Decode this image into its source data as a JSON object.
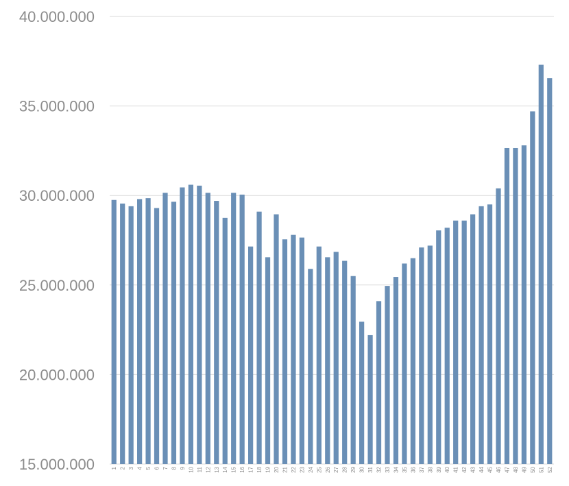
{
  "chart_data": {
    "type": "bar",
    "title": "",
    "xlabel": "",
    "ylabel": "",
    "ylim": [
      15000000,
      40000000
    ],
    "yticks": [
      15000000,
      20000000,
      25000000,
      30000000,
      35000000,
      40000000
    ],
    "ytick_labels": [
      "15.000.000",
      "20.000.000",
      "25.000.000",
      "30.000.000",
      "35.000.000",
      "40.000.000"
    ],
    "grid": true,
    "bar_color": "#6a8fb6",
    "categories": [
      "1",
      "2",
      "3",
      "4",
      "5",
      "6",
      "7",
      "8",
      "9",
      "10",
      "11",
      "12",
      "13",
      "14",
      "15",
      "16",
      "17",
      "18",
      "19",
      "20",
      "21",
      "22",
      "23",
      "24",
      "25",
      "26",
      "27",
      "28",
      "29",
      "30",
      "31",
      "32",
      "33",
      "34",
      "35",
      "36",
      "37",
      "38",
      "39",
      "40",
      "41",
      "42",
      "43",
      "44",
      "45",
      "46",
      "47",
      "48",
      "49",
      "50",
      "51",
      "52"
    ],
    "values": [
      29750000,
      29550000,
      29400000,
      29800000,
      29850000,
      29300000,
      30150000,
      29650000,
      30450000,
      30600000,
      30550000,
      30150000,
      29700000,
      28750000,
      30150000,
      30050000,
      27150000,
      29100000,
      26550000,
      28950000,
      27550000,
      27800000,
      27650000,
      25900000,
      27150000,
      26550000,
      26850000,
      26350000,
      25500000,
      22950000,
      22200000,
      24100000,
      24950000,
      25450000,
      26200000,
      26500000,
      27100000,
      27200000,
      28050000,
      28200000,
      28600000,
      28600000,
      28950000,
      29400000,
      29500000,
      30400000,
      32650000,
      32650000,
      32800000,
      34700000,
      37300000,
      36550000
    ]
  }
}
